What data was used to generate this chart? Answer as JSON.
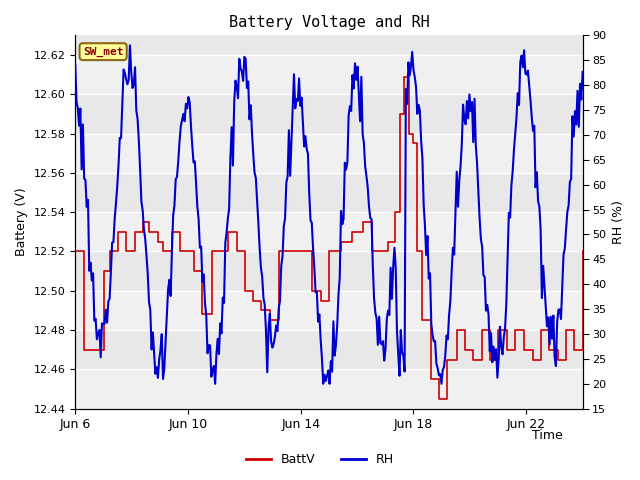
{
  "title": "Battery Voltage and RH",
  "xlabel": "Time",
  "ylabel_left": "Battery (V)",
  "ylabel_right": "RH (%)",
  "label_box": "SW_met",
  "label_box_color": "#8B0000",
  "label_box_bg": "#FFFF99",
  "label_box_border": "#8B6914",
  "legend_entries": [
    "BattV",
    "RH"
  ],
  "legend_colors": [
    "#CC0000",
    "#0000CC"
  ],
  "batt_color": "#CC0000",
  "rh_color": "#0000CC",
  "ylim_left": [
    12.44,
    12.63
  ],
  "ylim_right": [
    15,
    90
  ],
  "yticks_left": [
    12.44,
    12.46,
    12.48,
    12.5,
    12.52,
    12.54,
    12.56,
    12.58,
    12.6,
    12.62
  ],
  "yticks_right": [
    15,
    20,
    25,
    30,
    35,
    40,
    45,
    50,
    55,
    60,
    65,
    70,
    75,
    80,
    85,
    90
  ],
  "xtick_labels": [
    "Jun 6",
    "Jun 10",
    "Jun 14",
    "Jun 18",
    "Jun 22"
  ],
  "xtick_pos": [
    0,
    4,
    8,
    12,
    16
  ],
  "xlim": [
    0,
    18
  ],
  "bg_color": "#FFFFFF",
  "plot_bg_color": "#E8E8E8",
  "band_light_color": "#F0F0F0",
  "grid_color": "#FFFFFF"
}
